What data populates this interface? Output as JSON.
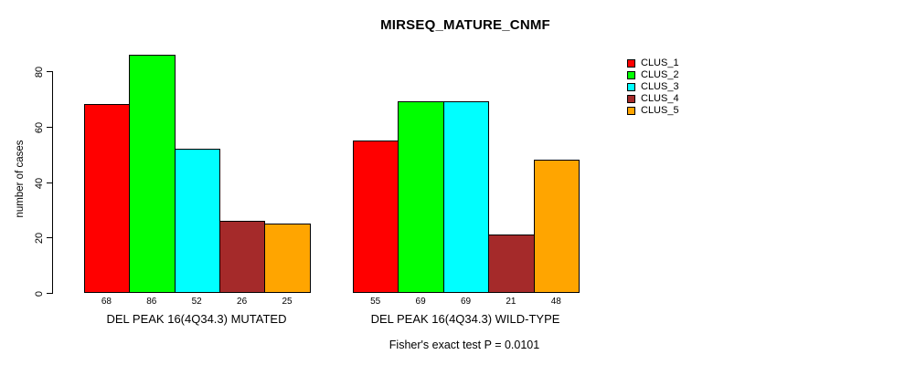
{
  "chart_data": {
    "type": "bar",
    "title": "MIRSEQ_MATURE_CNMF",
    "categories": [
      "DEL PEAK 16(4Q34.3) MUTATED",
      "DEL PEAK 16(4Q34.3) WILD-TYPE"
    ],
    "series": [
      {
        "name": "CLUS_1",
        "color": "#FF0000",
        "values": [
          68,
          55
        ]
      },
      {
        "name": "CLUS_2",
        "color": "#00FF00",
        "values": [
          86,
          69
        ]
      },
      {
        "name": "CLUS_3",
        "color": "#00FFFF",
        "values": [
          52,
          69
        ]
      },
      {
        "name": "CLUS_4",
        "color": "#A52A2A",
        "values": [
          26,
          21
        ]
      },
      {
        "name": "CLUS_5",
        "color": "#FFA500",
        "values": [
          25,
          48
        ]
      }
    ],
    "xlabel": "",
    "ylabel": "number of cases",
    "ylim": [
      0,
      80
    ],
    "yticks": [
      0,
      20,
      40,
      60,
      80
    ],
    "grid": false,
    "bar_value_labels_shown": true,
    "legend_position": "right-inside",
    "annotation": "Fisher's exact test P = 0.0101"
  }
}
